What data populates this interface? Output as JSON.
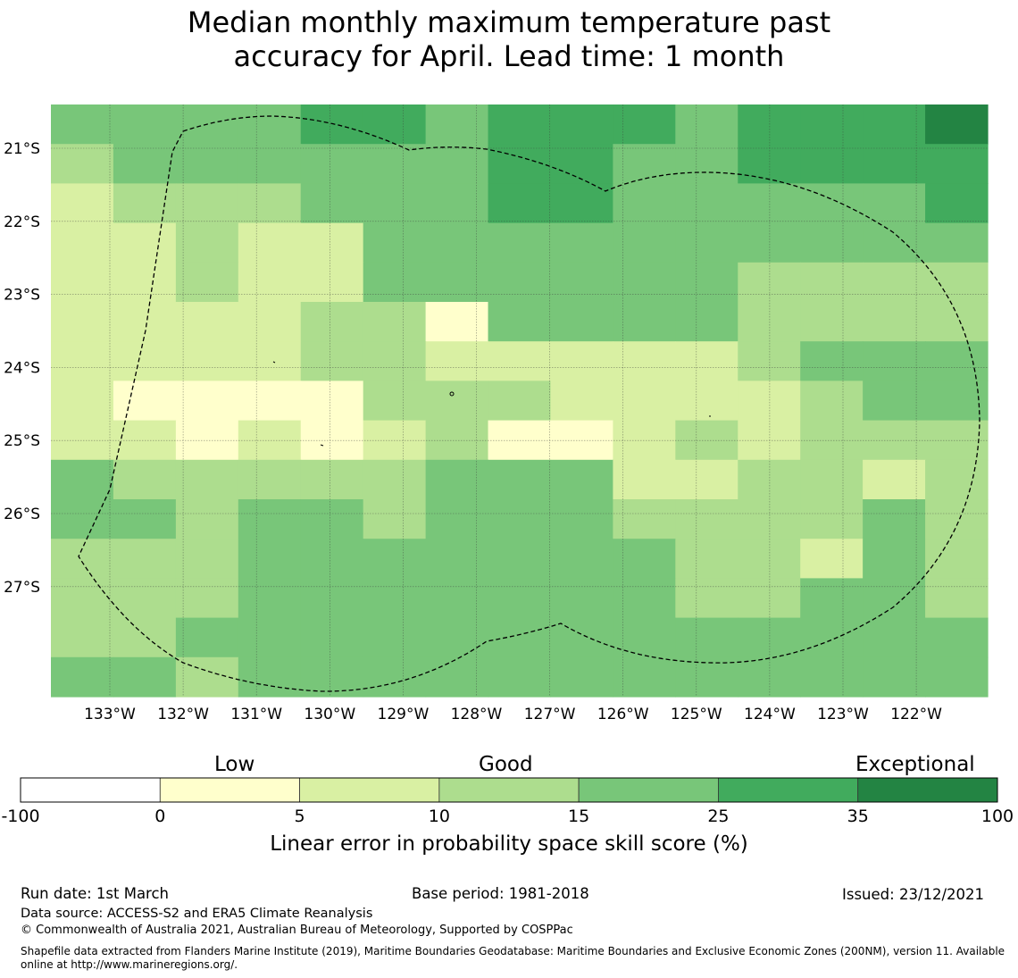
{
  "title_line1": "Median monthly maximum temperature past",
  "title_line2": "accuracy for April. Lead time: 1 month",
  "map": {
    "lat_ticks": [
      "21°S",
      "22°S",
      "23°S",
      "24°S",
      "25°S",
      "26°S",
      "27°S"
    ],
    "lon_ticks": [
      "133°W",
      "132°W",
      "131°W",
      "130°W",
      "129°W",
      "128°W",
      "127°W",
      "126°W",
      "125°W",
      "124°W",
      "123°W",
      "122°W"
    ],
    "grid_columns": 15,
    "grid_rows": 15,
    "cell_classes": [
      [
        4,
        4,
        4,
        4,
        5,
        5,
        4,
        5,
        5,
        5,
        4,
        5,
        5,
        5,
        6
      ],
      [
        3,
        4,
        4,
        4,
        4,
        4,
        4,
        5,
        5,
        4,
        4,
        5,
        5,
        5,
        5
      ],
      [
        2,
        3,
        3,
        3,
        4,
        4,
        4,
        5,
        5,
        4,
        4,
        4,
        4,
        4,
        5
      ],
      [
        2,
        2,
        3,
        2,
        2,
        4,
        4,
        4,
        4,
        4,
        4,
        4,
        4,
        4,
        4
      ],
      [
        2,
        2,
        3,
        2,
        2,
        4,
        4,
        4,
        4,
        4,
        4,
        3,
        3,
        3,
        3
      ],
      [
        2,
        2,
        2,
        2,
        3,
        3,
        1,
        4,
        4,
        4,
        4,
        3,
        3,
        3,
        3
      ],
      [
        2,
        2,
        2,
        2,
        3,
        3,
        2,
        2,
        2,
        2,
        2,
        3,
        4,
        4,
        4
      ],
      [
        2,
        1,
        1,
        1,
        1,
        3,
        3,
        3,
        2,
        2,
        2,
        2,
        3,
        4,
        4
      ],
      [
        2,
        2,
        1,
        2,
        1,
        2,
        3,
        1,
        1,
        2,
        3,
        2,
        3,
        3,
        3
      ],
      [
        4,
        3,
        3,
        3,
        3,
        3,
        4,
        4,
        4,
        2,
        2,
        3,
        3,
        2,
        3
      ],
      [
        4,
        4,
        3,
        4,
        4,
        3,
        4,
        4,
        4,
        3,
        3,
        3,
        3,
        4,
        3
      ],
      [
        3,
        3,
        3,
        4,
        4,
        4,
        4,
        4,
        4,
        4,
        3,
        3,
        2,
        4,
        3
      ],
      [
        3,
        3,
        3,
        4,
        4,
        4,
        4,
        4,
        4,
        4,
        3,
        3,
        4,
        4,
        3
      ],
      [
        3,
        3,
        4,
        4,
        4,
        4,
        4,
        4,
        4,
        4,
        4,
        4,
        4,
        4,
        4
      ],
      [
        4,
        4,
        3,
        4,
        4,
        4,
        4,
        4,
        4,
        4,
        4,
        4,
        4,
        4,
        4
      ]
    ]
  },
  "colorbar": {
    "colors": [
      "#ffffff",
      "#ffffcc",
      "#d9f0a3",
      "#addd8e",
      "#78c679",
      "#41ab5d",
      "#238443"
    ],
    "ticks": [
      "-100",
      "0",
      "5",
      "10",
      "15",
      "25",
      "35",
      "100"
    ],
    "words": [
      "Low",
      "Good",
      "Exceptional"
    ],
    "label": "Linear error in probability space skill score (%)"
  },
  "footer": {
    "run_date": "Run date: 1st March",
    "base_period": "Base period: 1981-2018",
    "issued": "Issued: 23/12/2021",
    "data_source": "Data source: ACCESS-S2 and ERA5 Climate Reanalysis",
    "copyright": "© Commonwealth of Australia 2021, Australian Bureau of Meteorology, Supported by COSPPac",
    "shapefile_line1": "Shapefile data extracted from Flanders Marine Institute (2019), Maritime Boundaries Geodatabase: Maritime Boundaries and Exclusive Economic Zones (200NM), version 11. Available",
    "shapefile_line2": "online at http://www.marineregions.org/."
  }
}
